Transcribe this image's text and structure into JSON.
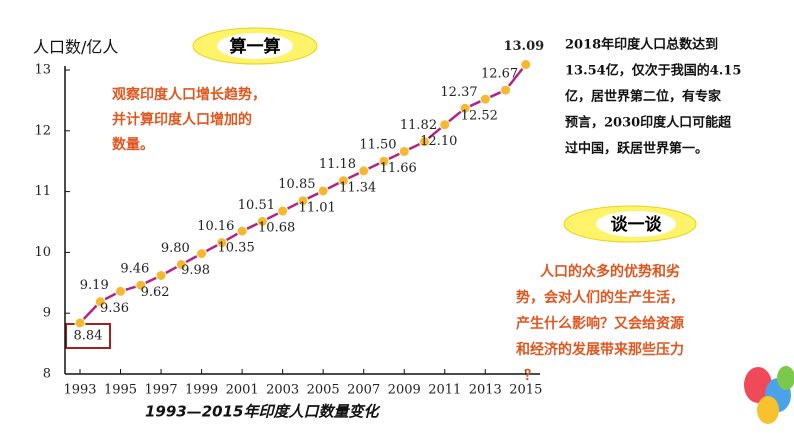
{
  "chart_data": {
    "type": "line",
    "title": "1993—2015年印度人口数量变化",
    "y_label": "人口数/亿人",
    "x": [
      1993,
      1994,
      1995,
      1996,
      1997,
      1998,
      1999,
      2000,
      2001,
      2002,
      2003,
      2004,
      2005,
      2006,
      2007,
      2008,
      2009,
      2010,
      2011,
      2012,
      2013,
      2014,
      2015
    ],
    "values": [
      8.84,
      9.19,
      9.36,
      9.46,
      9.62,
      9.8,
      9.98,
      10.16,
      10.35,
      10.51,
      10.68,
      10.85,
      11.01,
      11.18,
      11.34,
      11.5,
      11.66,
      11.82,
      12.1,
      12.37,
      12.52,
      12.67,
      13.09
    ],
    "value_labels": [
      "8.84",
      "9.19",
      "9.36",
      "9.46",
      "9.62",
      "9.80",
      "9.98",
      "10.16",
      "10.35",
      "10.51",
      "10.68",
      "10.85",
      "11.01",
      "11.18",
      "11.34",
      "11.50",
      "11.66",
      "11.82",
      "12.10",
      "12.37",
      "12.52",
      "12.67",
      "13.09"
    ],
    "color": "#b5227f",
    "marker_color": "#f5b82e",
    "xlim": [
      1992.26,
      2015.7
    ],
    "xticks": [
      1993,
      1995,
      1997,
      1999,
      2001,
      2003,
      2005,
      2007,
      2009,
      2011,
      2013,
      2015
    ],
    "ylim": [
      8,
      13
    ],
    "yticks": [
      8,
      9,
      10,
      11,
      12,
      13
    ],
    "grid": false
  },
  "slide": {
    "badge1": "算一算",
    "badge2": "谈一谈",
    "task_lines": [
      "观察印度人口增长趋势，",
      "并计算印度人口增加的",
      "数量。"
    ],
    "fact_lines": [
      "2018年印度人口总数达到",
      "13.54亿，仅次于我国的4.15",
      "亿，居世界第二位，有专家",
      "预言，2030印度人口可能超",
      "过中国，跃居世界第一。"
    ],
    "discuss_lines": [
      "人口的众多的优势和劣",
      "势，会对人们的生产生活，",
      "产生什么影响？又会给资源",
      "和经济的发展带来那些压力",
      "？"
    ]
  }
}
